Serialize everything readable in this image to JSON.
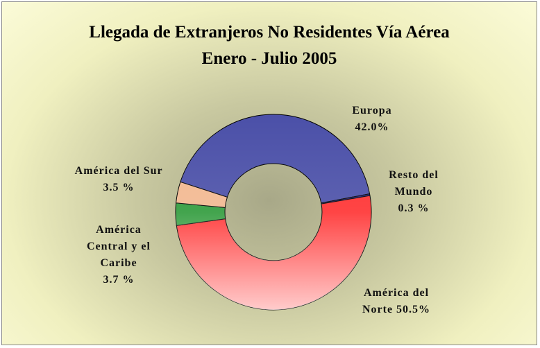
{
  "chart_data": {
    "type": "donut",
    "title": "Llegada de Extranjeros No Residentes Vía Aérea",
    "subtitle": "Enero - Julio  2005",
    "categories": [
      "Europa",
      "Resto del Mundo",
      "América del Norte",
      "América Central y el Caribe",
      "América del Sur"
    ],
    "values": [
      42.0,
      0.3,
      50.5,
      3.7,
      3.5
    ],
    "value_labels": [
      "42.0%",
      "0.3 %",
      "50.5%",
      "3.7 %",
      "3.5 %"
    ],
    "colors": [
      "#4b50a8",
      "#20207a",
      "#ff3030",
      "#2e9a3a",
      "#f2b890"
    ]
  }
}
